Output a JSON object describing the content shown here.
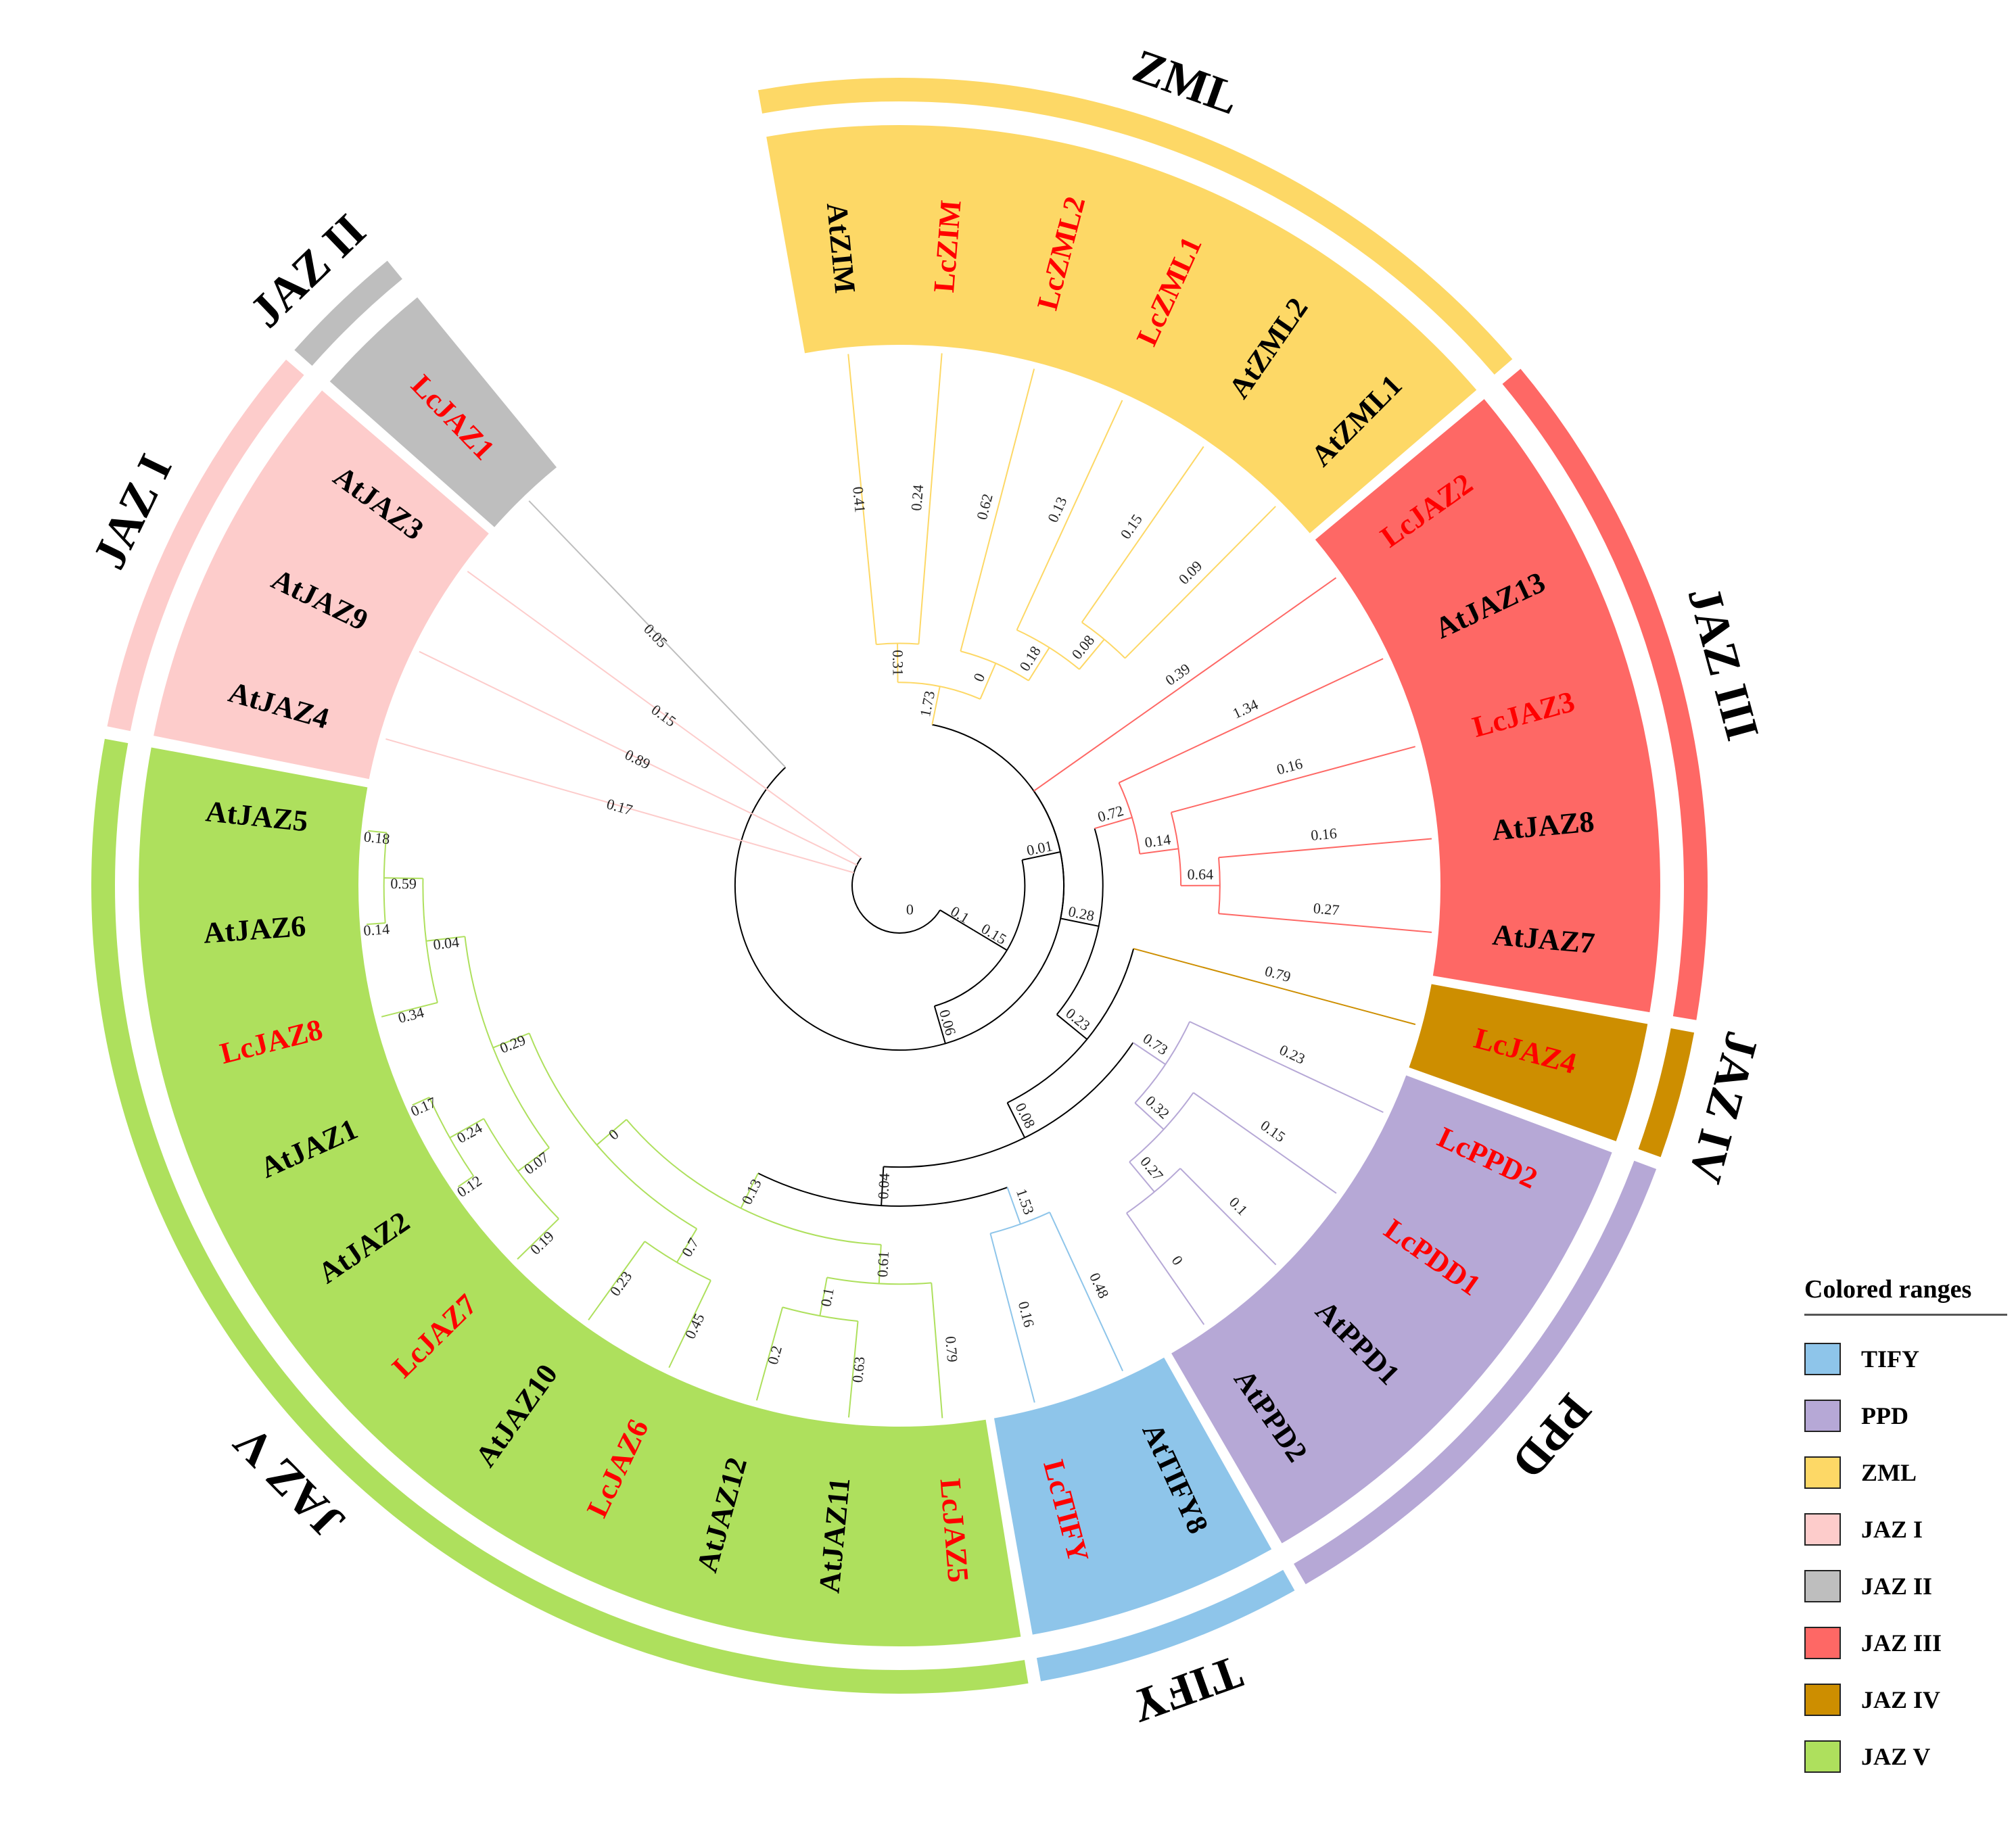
{
  "colors": {
    "TIFY": "#8EC5EA",
    "PPD": "#B6A8D6",
    "ZML": "#FDD866",
    "JAZ I": "#FDCCCB",
    "JAZ II": "#BEBEBE",
    "JAZ III": "#FE6865",
    "JAZ IV": "#CD8E00",
    "JAZ V": "#AEE05D",
    "lc_label": "#FF0000",
    "at_label": "#000000"
  },
  "clades": [
    {
      "name": "ZML",
      "label": "ZML"
    },
    {
      "name": "JAZ III",
      "label": "JAZ III"
    },
    {
      "name": "JAZ IV",
      "label": "JAZ IV"
    },
    {
      "name": "PPD",
      "label": "PPD"
    },
    {
      "name": "TIFY",
      "label": "TIFY"
    },
    {
      "name": "JAZ V",
      "label": "JAZ V"
    },
    {
      "name": "JAZ I",
      "label": "JAZ I"
    },
    {
      "name": "JAZ II",
      "label": "JAZ II"
    }
  ],
  "leaves": [
    {
      "name": "AtZIM",
      "clade": "ZML",
      "lc": false
    },
    {
      "name": "LcZIM",
      "clade": "ZML",
      "lc": true
    },
    {
      "name": "LcZML2",
      "clade": "ZML",
      "lc": true
    },
    {
      "name": "LcZML1",
      "clade": "ZML",
      "lc": true
    },
    {
      "name": "AtZML2",
      "clade": "ZML",
      "lc": false
    },
    {
      "name": "AtZML1",
      "clade": "ZML",
      "lc": false
    },
    {
      "name": "LcJAZ2",
      "clade": "JAZ III",
      "lc": true
    },
    {
      "name": "AtJAZ13",
      "clade": "JAZ III",
      "lc": false
    },
    {
      "name": "LcJAZ3",
      "clade": "JAZ III",
      "lc": true
    },
    {
      "name": "AtJAZ8",
      "clade": "JAZ III",
      "lc": false
    },
    {
      "name": "AtJAZ7",
      "clade": "JAZ III",
      "lc": false
    },
    {
      "name": "LcJAZ4",
      "clade": "JAZ IV",
      "lc": true
    },
    {
      "name": "LcPPD2",
      "clade": "PPD",
      "lc": true
    },
    {
      "name": "LcPDD1",
      "clade": "PPD",
      "lc": true
    },
    {
      "name": "AtPPD1",
      "clade": "PPD",
      "lc": false
    },
    {
      "name": "AtPPD2",
      "clade": "PPD",
      "lc": false
    },
    {
      "name": "AtTIFY8",
      "clade": "TIFY",
      "lc": false
    },
    {
      "name": "LcTIFY",
      "clade": "TIFY",
      "lc": true
    },
    {
      "name": "LcJAZ5",
      "clade": "JAZ V",
      "lc": true
    },
    {
      "name": "AtJAZ11",
      "clade": "JAZ V",
      "lc": false
    },
    {
      "name": "AtJAZ12",
      "clade": "JAZ V",
      "lc": false
    },
    {
      "name": "LcJAZ6",
      "clade": "JAZ V",
      "lc": true
    },
    {
      "name": "AtJAZ10",
      "clade": "JAZ V",
      "lc": false
    },
    {
      "name": "LcJAZ7",
      "clade": "JAZ V",
      "lc": true
    },
    {
      "name": "AtJAZ2",
      "clade": "JAZ V",
      "lc": false
    },
    {
      "name": "AtJAZ1",
      "clade": "JAZ V",
      "lc": false
    },
    {
      "name": "LcJAZ8",
      "clade": "JAZ V",
      "lc": true
    },
    {
      "name": "AtJAZ6",
      "clade": "JAZ V",
      "lc": false
    },
    {
      "name": "AtJAZ5",
      "clade": "JAZ V",
      "lc": false
    },
    {
      "name": "AtJAZ4",
      "clade": "JAZ I",
      "lc": false
    },
    {
      "name": "AtJAZ9",
      "clade": "JAZ I",
      "lc": false
    },
    {
      "name": "AtJAZ3",
      "clade": "JAZ I",
      "lc": false
    },
    {
      "name": "LcJAZ1",
      "clade": "JAZ II",
      "lc": false,
      "lc_color": true
    }
  ],
  "tree": {
    "label": "0",
    "children": [
      {
        "label": "0.1",
        "children": [
          {
            "label": "0.15",
            "children": [
              {
                "label": "0.06",
                "children": [
                  {
                    "label": "0.05",
                    "leaf": "LcJAZ1"
                  },
                  {
                    "label": "1.73",
                    "children": [
                      {
                        "label": "0.31",
                        "children": [
                          {
                            "label": "0.41",
                            "leaf": "AtZIM"
                          },
                          {
                            "label": "0.24",
                            "leaf": "LcZIM"
                          }
                        ]
                      },
                      {
                        "label": "0",
                        "children": [
                          {
                            "label": "0.62",
                            "leaf": "LcZML2"
                          },
                          {
                            "label": "0.18",
                            "children": [
                              {
                                "label": "0.13",
                                "leaf": "LcZML1"
                              },
                              {
                                "label": "0.08",
                                "children": [
                                  {
                                    "label": "0.15",
                                    "leaf": "AtZML2"
                                  },
                                  {
                                    "label": "0.09",
                                    "leaf": "AtZML1"
                                  }
                                ]
                              }
                            ]
                          }
                        ]
                      }
                    ]
                  }
                ]
              },
              {
                "label": "0.01",
                "children": [
                  {
                    "label": "0.39",
                    "leaf": "LcJAZ2"
                  },
                  {
                    "label": "0.28",
                    "children": [
                      {
                        "label": "0.72",
                        "children": [
                          {
                            "label": "1.34",
                            "leaf": "AtJAZ13"
                          },
                          {
                            "label": "0.14",
                            "children": [
                              {
                                "label": "0.16",
                                "leaf": "LcJAZ3"
                              },
                              {
                                "label": "0.64",
                                "children": [
                                  {
                                    "label": "0.16",
                                    "leaf": "AtJAZ8"
                                  },
                                  {
                                    "label": "0.27",
                                    "leaf": "AtJAZ7"
                                  }
                                ]
                              }
                            ]
                          }
                        ]
                      },
                      {
                        "label": "0.23",
                        "children": [
                          {
                            "label": "0.79",
                            "leaf": "LcJAZ4"
                          },
                          {
                            "label": "0.08",
                            "children": [
                              {
                                "label": "0.73",
                                "children": [
                                  {
                                    "label": "0.23",
                                    "leaf": "LcPPD2"
                                  },
                                  {
                                    "label": "0.32",
                                    "children": [
                                      {
                                        "label": "0.15",
                                        "leaf": "LcPDD1"
                                      },
                                      {
                                        "label": "0.27",
                                        "children": [
                                          {
                                            "label": "0.1",
                                            "leaf": "AtPPD1"
                                          },
                                          {
                                            "label": "0",
                                            "leaf": "AtPPD2"
                                          }
                                        ]
                                      }
                                    ]
                                  }
                                ]
                              },
                              {
                                "label": "0.04",
                                "children": [
                                  {
                                    "label": "1.53",
                                    "children": [
                                      {
                                        "label": "0.48",
                                        "leaf": "AtTIFY8"
                                      },
                                      {
                                        "label": "0.16",
                                        "leaf": "LcTIFY"
                                      }
                                    ]
                                  },
                                  {
                                    "label": "0.13",
                                    "children": [
                                      {
                                        "label": "0.61",
                                        "children": [
                                          {
                                            "label": "0.79",
                                            "leaf": "LcJAZ5"
                                          },
                                          {
                                            "label": "0.1",
                                            "children": [
                                              {
                                                "label": "0.63",
                                                "leaf": "AtJAZ11"
                                              },
                                              {
                                                "label": "0.2",
                                                "leaf": "AtJAZ12"
                                              }
                                            ]
                                          }
                                        ]
                                      },
                                      {
                                        "label": "0",
                                        "children": [
                                          {
                                            "label": "0.7",
                                            "children": [
                                              {
                                                "label": "0.45",
                                                "leaf": "LcJAZ6"
                                              },
                                              {
                                                "label": "0.23",
                                                "leaf": "AtJAZ10"
                                              }
                                            ]
                                          },
                                          {
                                            "label": "0.29",
                                            "children": [
                                              {
                                                "label": "0.07",
                                                "children": [
                                                  {
                                                    "label": "0.19",
                                                    "leaf": "LcJAZ7"
                                                  },
                                                  {
                                                    "label": "0.24",
                                                    "children": [
                                                      {
                                                        "label": "0.12",
                                                        "leaf": "AtJAZ2"
                                                      },
                                                      {
                                                        "label": "0.17",
                                                        "leaf": "AtJAZ1"
                                                      }
                                                    ]
                                                  }
                                                ]
                                              },
                                              {
                                                "label": "0.04",
                                                "children": [
                                                  {
                                                    "label": "0.34",
                                                    "leaf": "LcJAZ8"
                                                  },
                                                  {
                                                    "label": "0.59",
                                                    "children": [
                                                      {
                                                        "label": "0.14",
                                                        "leaf": "AtJAZ6"
                                                      },
                                                      {
                                                        "label": "0.18",
                                                        "leaf": "AtJAZ5"
                                                      }
                                                    ]
                                                  }
                                                ]
                                              }
                                            ]
                                          }
                                        ]
                                      }
                                    ]
                                  }
                                ]
                              }
                            ]
                          }
                        ]
                      }
                    ]
                  }
                ]
              }
            ]
          }
        ]
      },
      {
        "label": "0.89",
        "leaf": "AtJAZ9"
      },
      {
        "label": "0.15",
        "leaf": "AtJAZ3"
      },
      {
        "label": "0.17",
        "leaf": "AtJAZ4"
      }
    ]
  },
  "legend": {
    "title": "Colored ranges",
    "items": [
      "TIFY",
      "PPD",
      "ZML",
      "JAZ I",
      "JAZ II",
      "JAZ III",
      "JAZ IV",
      "JAZ V"
    ]
  }
}
